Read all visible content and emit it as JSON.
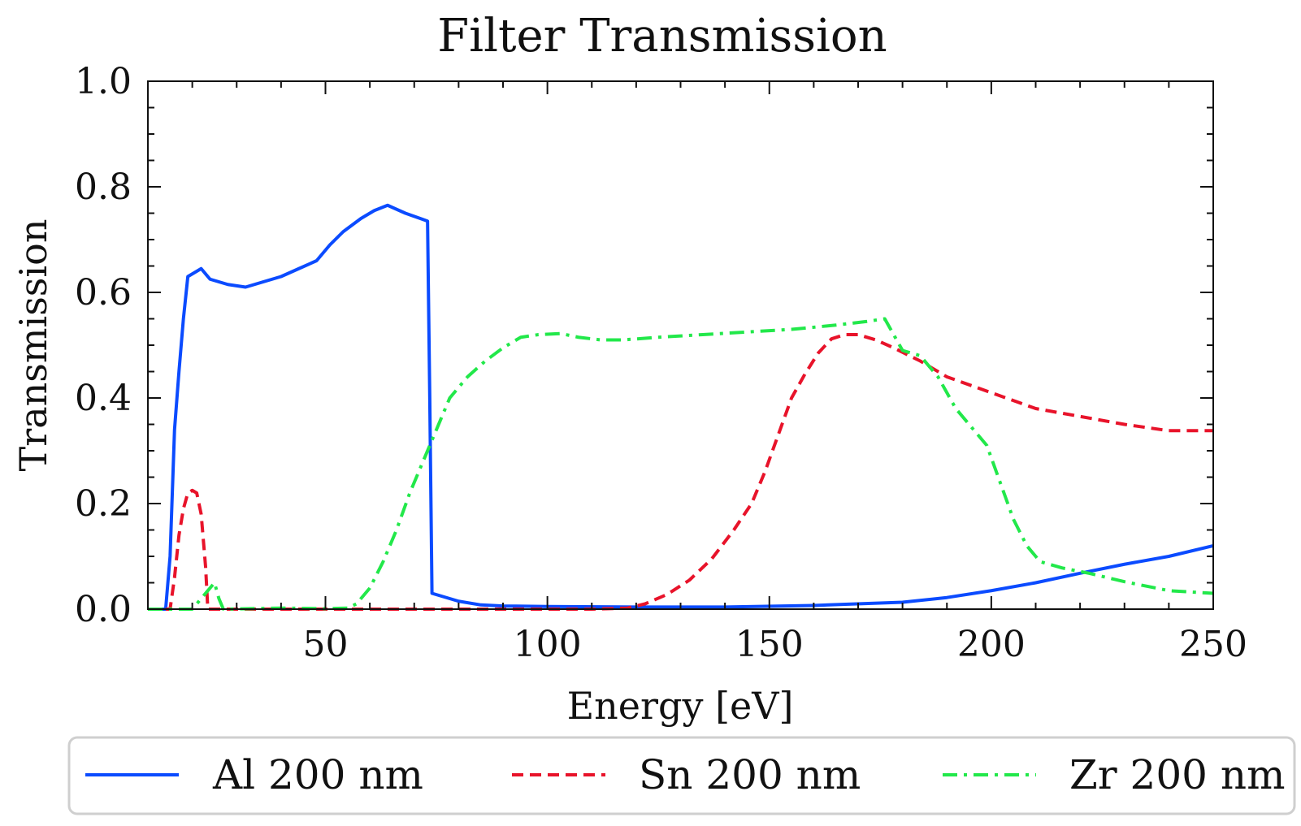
{
  "chart_data": {
    "type": "line",
    "title": "Filter Transmission",
    "xlabel": "Energy [eV]",
    "ylabel": "Transmission",
    "xlim": [
      10,
      250
    ],
    "ylim": [
      0,
      1.0
    ],
    "x_ticks": [
      50,
      100,
      150,
      200,
      250
    ],
    "x_tick_labels": [
      "50",
      "100",
      "150",
      "200",
      "250"
    ],
    "y_ticks": [
      0,
      0.2,
      0.4,
      0.6,
      0.8,
      1.0
    ],
    "y_tick_labels": [
      "0.0",
      "0.2",
      "0.4",
      "0.6",
      "0.8",
      "1.0"
    ],
    "legend_position": "bottom-center",
    "grid": false,
    "series": [
      {
        "name": "Al 200 nm",
        "color": "#0b4bff",
        "style": "solid",
        "points": [
          [
            10,
            0
          ],
          [
            14,
            0
          ],
          [
            15,
            0.1
          ],
          [
            16,
            0.34
          ],
          [
            17,
            0.45
          ],
          [
            18,
            0.55
          ],
          [
            19,
            0.63
          ],
          [
            20,
            0.635
          ],
          [
            22,
            0.645
          ],
          [
            24,
            0.625
          ],
          [
            28,
            0.615
          ],
          [
            32,
            0.61
          ],
          [
            36,
            0.62
          ],
          [
            40,
            0.63
          ],
          [
            44,
            0.645
          ],
          [
            48,
            0.66
          ],
          [
            51,
            0.69
          ],
          [
            54,
            0.715
          ],
          [
            58,
            0.74
          ],
          [
            61,
            0.755
          ],
          [
            64,
            0.765
          ],
          [
            68,
            0.75
          ],
          [
            72,
            0.738
          ],
          [
            73,
            0.735
          ],
          [
            73.5,
            0.4
          ],
          [
            74,
            0.03
          ],
          [
            76,
            0.025
          ],
          [
            80,
            0.015
          ],
          [
            85,
            0.008
          ],
          [
            90,
            0.006
          ],
          [
            100,
            0.005
          ],
          [
            120,
            0.004
          ],
          [
            140,
            0.004
          ],
          [
            160,
            0.007
          ],
          [
            180,
            0.013
          ],
          [
            190,
            0.022
          ],
          [
            200,
            0.035
          ],
          [
            210,
            0.05
          ],
          [
            220,
            0.068
          ],
          [
            230,
            0.085
          ],
          [
            240,
            0.1
          ],
          [
            250,
            0.12
          ]
        ]
      },
      {
        "name": "Sn 200 nm",
        "color": "#e8132a",
        "style": "dashed",
        "points": [
          [
            10,
            0
          ],
          [
            15,
            0
          ],
          [
            16,
            0.06
          ],
          [
            17,
            0.14
          ],
          [
            18,
            0.19
          ],
          [
            19,
            0.22
          ],
          [
            20,
            0.225
          ],
          [
            21,
            0.22
          ],
          [
            22,
            0.18
          ],
          [
            23,
            0.08
          ],
          [
            23.5,
            0
          ],
          [
            30,
            0
          ],
          [
            60,
            0
          ],
          [
            80,
            0
          ],
          [
            100,
            0
          ],
          [
            110,
            0
          ],
          [
            118,
            0.002
          ],
          [
            122,
            0.01
          ],
          [
            127,
            0.028
          ],
          [
            132,
            0.055
          ],
          [
            137,
            0.095
          ],
          [
            142,
            0.15
          ],
          [
            146,
            0.2
          ],
          [
            149,
            0.26
          ],
          [
            152,
            0.33
          ],
          [
            155,
            0.4
          ],
          [
            158,
            0.445
          ],
          [
            161,
            0.485
          ],
          [
            164,
            0.512
          ],
          [
            167,
            0.52
          ],
          [
            170,
            0.52
          ],
          [
            174,
            0.51
          ],
          [
            178,
            0.495
          ],
          [
            184,
            0.47
          ],
          [
            190,
            0.44
          ],
          [
            200,
            0.41
          ],
          [
            210,
            0.38
          ],
          [
            220,
            0.365
          ],
          [
            230,
            0.35
          ],
          [
            240,
            0.338
          ],
          [
            250,
            0.338
          ]
        ]
      },
      {
        "name": "Zr 200 nm",
        "color": "#22e84a",
        "style": "dashdot",
        "points": [
          [
            10,
            0
          ],
          [
            20,
            0
          ],
          [
            22,
            0.02
          ],
          [
            24,
            0.04
          ],
          [
            25,
            0.05
          ],
          [
            26,
            0.02
          ],
          [
            27,
            0
          ],
          [
            40,
            0.002
          ],
          [
            50,
            0.001
          ],
          [
            55,
            0.002
          ],
          [
            57,
            0.01
          ],
          [
            60,
            0.04
          ],
          [
            63,
            0.09
          ],
          [
            66,
            0.15
          ],
          [
            69,
            0.22
          ],
          [
            72,
            0.28
          ],
          [
            75,
            0.34
          ],
          [
            78,
            0.4
          ],
          [
            82,
            0.44
          ],
          [
            86,
            0.47
          ],
          [
            90,
            0.495
          ],
          [
            94,
            0.515
          ],
          [
            98,
            0.52
          ],
          [
            103,
            0.522
          ],
          [
            107,
            0.515
          ],
          [
            112,
            0.51
          ],
          [
            117,
            0.51
          ],
          [
            125,
            0.515
          ],
          [
            135,
            0.52
          ],
          [
            145,
            0.525
          ],
          [
            155,
            0.53
          ],
          [
            165,
            0.538
          ],
          [
            172,
            0.545
          ],
          [
            176,
            0.55
          ],
          [
            177,
            0.535
          ],
          [
            180,
            0.49
          ],
          [
            184,
            0.48
          ],
          [
            188,
            0.44
          ],
          [
            192,
            0.38
          ],
          [
            196,
            0.34
          ],
          [
            199,
            0.31
          ],
          [
            202,
            0.24
          ],
          [
            205,
            0.17
          ],
          [
            208,
            0.12
          ],
          [
            211,
            0.09
          ],
          [
            216,
            0.078
          ],
          [
            222,
            0.068
          ],
          [
            230,
            0.052
          ],
          [
            240,
            0.035
          ],
          [
            250,
            0.03
          ]
        ]
      }
    ]
  }
}
